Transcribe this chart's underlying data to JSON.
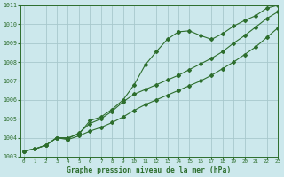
{
  "title": "Graphe pression niveau de la mer (hPa)",
  "background_color": "#cce8ec",
  "grid_color": "#a8c8cc",
  "line_color": "#2d6e2d",
  "xlim": [
    0,
    23
  ],
  "ylim": [
    1003,
    1011
  ],
  "yticks": [
    1003,
    1004,
    1005,
    1006,
    1007,
    1008,
    1009,
    1010,
    1011
  ],
  "xticks": [
    0,
    1,
    2,
    3,
    4,
    5,
    6,
    7,
    8,
    9,
    10,
    11,
    12,
    13,
    14,
    15,
    16,
    17,
    18,
    19,
    20,
    21,
    22,
    23
  ],
  "series1_x": [
    0,
    1,
    2,
    3,
    4,
    5,
    6,
    7,
    8,
    9,
    10,
    11,
    12,
    13,
    14,
    15,
    16,
    17,
    18,
    19,
    20,
    21,
    22,
    23
  ],
  "series1_y": [
    1003.3,
    1003.4,
    1003.6,
    1004.0,
    1003.9,
    1004.1,
    1004.35,
    1004.55,
    1004.8,
    1005.1,
    1005.45,
    1005.75,
    1006.0,
    1006.25,
    1006.5,
    1006.75,
    1007.0,
    1007.3,
    1007.65,
    1008.0,
    1008.4,
    1008.8,
    1009.3,
    1009.8
  ],
  "series2_x": [
    0,
    1,
    2,
    3,
    4,
    5,
    6,
    7,
    8,
    9,
    10,
    11,
    12,
    13,
    14,
    15,
    16,
    17,
    18,
    19,
    20,
    21,
    22,
    23
  ],
  "series2_y": [
    1003.3,
    1003.4,
    1003.6,
    1004.0,
    1004.0,
    1004.2,
    1004.9,
    1005.1,
    1005.5,
    1006.0,
    1006.8,
    1007.85,
    1008.55,
    1009.2,
    1009.6,
    1009.65,
    1009.4,
    1009.2,
    1009.5,
    1009.9,
    1010.2,
    1010.45,
    1010.85,
    1011.0
  ],
  "series3_x": [
    0,
    1,
    2,
    3,
    4,
    5,
    6,
    7,
    8,
    9,
    10,
    11,
    12,
    13,
    14,
    15,
    16,
    17,
    18,
    19,
    20,
    21,
    22,
    23
  ],
  "series3_y": [
    1003.3,
    1003.4,
    1003.6,
    1004.0,
    1003.95,
    1004.25,
    1004.75,
    1005.0,
    1005.4,
    1005.9,
    1006.3,
    1006.55,
    1006.8,
    1007.05,
    1007.3,
    1007.6,
    1007.9,
    1008.2,
    1008.55,
    1009.0,
    1009.4,
    1009.85,
    1010.3,
    1010.65
  ]
}
